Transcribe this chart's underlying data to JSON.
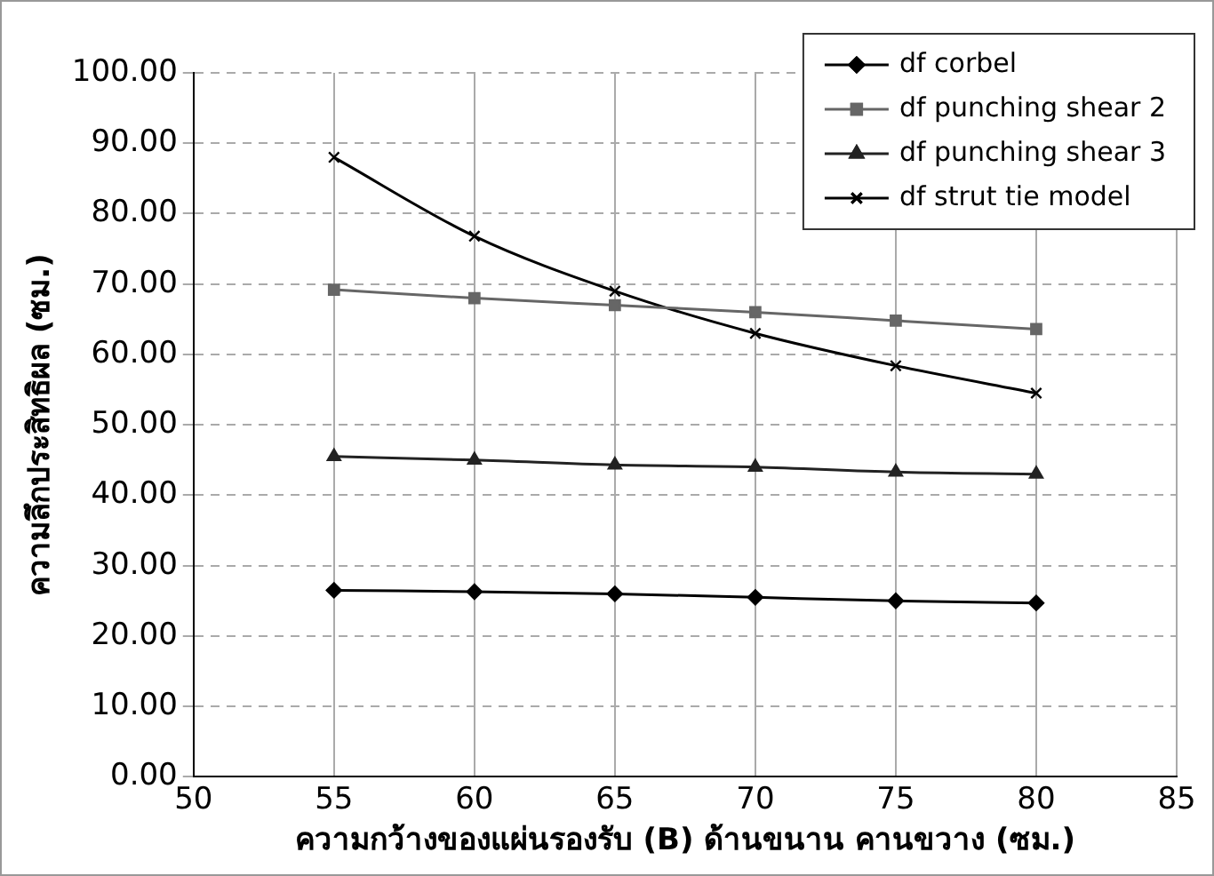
{
  "chart_data": {
    "type": "line",
    "xlabel": "ความกว้างของแผ่นรองรับ (B) ด้านขนาน คานขวาง (ซม.)",
    "ylabel": "ความลึกประสิทธิผล (ซม.)",
    "x": [
      55,
      60,
      65,
      70,
      75,
      80
    ],
    "series": [
      {
        "name": "df corbel",
        "color": "#000000",
        "marker": "diamond",
        "values": [
          26.5,
          26.3,
          26.0,
          25.5,
          25.0,
          24.7
        ]
      },
      {
        "name": "df punching shear 2",
        "color": "#666666",
        "marker": "square",
        "values": [
          69.2,
          68.0,
          67.0,
          66.0,
          64.8,
          63.6
        ]
      },
      {
        "name": "df punching shear 3",
        "color": "#222222",
        "marker": "triangle",
        "values": [
          45.5,
          45.0,
          44.3,
          44.0,
          43.3,
          43.0
        ]
      },
      {
        "name": "df strut tie model",
        "color": "#000000",
        "marker": "cross",
        "values": [
          88.0,
          76.8,
          69.0,
          63.0,
          58.4,
          54.5
        ]
      }
    ],
    "xlim": [
      50,
      85
    ],
    "xticks": [
      50,
      55,
      60,
      65,
      70,
      75,
      80,
      85
    ],
    "ylim": [
      0,
      100
    ],
    "yticks": [
      {
        "value": 0,
        "label": "0.00"
      },
      {
        "value": 10,
        "label": "10.00"
      },
      {
        "value": 20,
        "label": "20.00"
      },
      {
        "value": 30,
        "label": "30.00"
      },
      {
        "value": 40,
        "label": "40.00"
      },
      {
        "value": 50,
        "label": "50.00"
      },
      {
        "value": 60,
        "label": "60.00"
      },
      {
        "value": 70,
        "label": "70.00"
      },
      {
        "value": 80,
        "label": "80.00"
      },
      {
        "value": 90,
        "label": "90.00"
      },
      {
        "value": 100,
        "label": "100.00"
      }
    ],
    "grid": true,
    "legend": "top right",
    "line_style": "solid"
  }
}
